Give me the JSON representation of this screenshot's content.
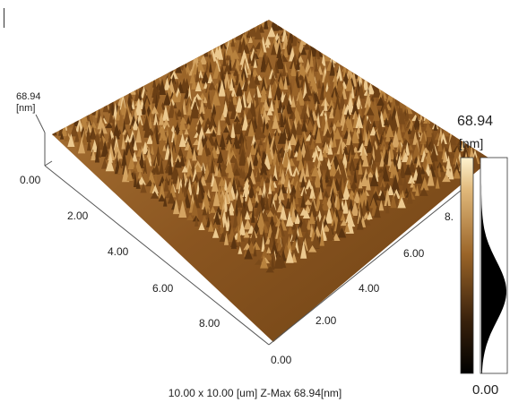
{
  "figure": {
    "caption": "10.00 x 10.00 [um]  Z-Max 68.94[nm]",
    "z_axis": {
      "max_label": "68.94",
      "unit_label": "[nm]"
    },
    "colorbar": {
      "max_label": "68.94",
      "unit_label": "[nm]",
      "min_label": "0.00"
    },
    "axis_left": {
      "origin_label": "0.00",
      "tick_labels": [
        "2.00",
        "4.00",
        "6.00",
        "8.00"
      ]
    },
    "axis_right": {
      "origin_label": "0.00",
      "tick_labels": [
        "2.00",
        "4.00",
        "6.00",
        "8."
      ]
    },
    "colors": {
      "surface_dark": "#3a220c",
      "surface_mid": "#9a6428",
      "surface_light": "#e8c48c",
      "histogram": "#000000"
    }
  }
}
